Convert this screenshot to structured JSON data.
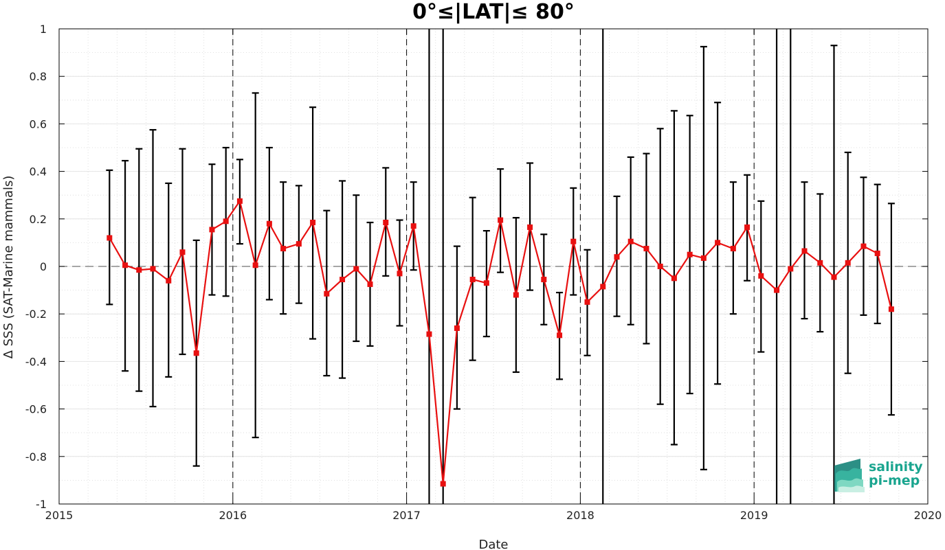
{
  "chart_data": {
    "type": "line",
    "title": "0°≤|LAT|≤ 80°",
    "xlabel": "Date",
    "ylabel": "Δ SSS (SAT-Marine mammals)",
    "xlim": [
      2015,
      2020
    ],
    "ylim": [
      -1,
      1
    ],
    "x_ticks": [
      "2015",
      "2016",
      "2017",
      "2018",
      "2019",
      "2020"
    ],
    "y_ticks": [
      "1",
      "0.8",
      "0.6",
      "0.4",
      "0.2",
      "0",
      "-0.2",
      "-0.4",
      "-0.6",
      "-0.8",
      "-1"
    ],
    "grid": true,
    "year_dividers": [
      2016,
      2017,
      2018,
      2019
    ],
    "zero_line": 0,
    "series": [
      {
        "color": "#e81010",
        "x": [
          2015.29,
          2015.38,
          2015.46,
          2015.54,
          2015.63,
          2015.71,
          2015.79,
          2015.88,
          2015.96,
          2016.04,
          2016.13,
          2016.21,
          2016.29,
          2016.38,
          2016.46,
          2016.54,
          2016.63,
          2016.71,
          2016.79,
          2016.88,
          2016.96,
          2017.04,
          2017.13,
          2017.21,
          2017.29,
          2017.38,
          2017.46,
          2017.54,
          2017.63,
          2017.71,
          2017.79,
          2017.88,
          2017.96,
          2018.04,
          2018.13,
          2018.21,
          2018.29,
          2018.38,
          2018.46,
          2018.54,
          2018.63,
          2018.71,
          2018.79,
          2018.88,
          2018.96,
          2019.04,
          2019.13,
          2019.21,
          2019.29,
          2019.38,
          2019.46,
          2019.54,
          2019.63,
          2019.71,
          2019.79
        ],
        "y": [
          0.12,
          0.005,
          -0.015,
          -0.01,
          -0.06,
          0.06,
          -0.365,
          0.155,
          0.19,
          0.275,
          0.005,
          0.18,
          0.075,
          0.095,
          0.185,
          -0.115,
          -0.055,
          -0.01,
          -0.075,
          0.185,
          -0.03,
          0.17,
          -0.285,
          -0.915,
          -0.26,
          -0.055,
          -0.07,
          0.195,
          -0.12,
          0.165,
          -0.055,
          -0.29,
          0.105,
          -0.15,
          -0.085,
          0.04,
          0.105,
          0.075,
          0.0,
          -0.05,
          0.05,
          0.035,
          0.1,
          0.075,
          0.165,
          -0.04,
          -0.1,
          -0.01,
          0.065,
          0.015,
          -0.045,
          0.015,
          0.085,
          0.055,
          -0.18
        ],
        "error_low": [
          -0.16,
          -0.44,
          -0.525,
          -0.59,
          -0.465,
          -0.37,
          -0.84,
          -0.12,
          -0.125,
          0.095,
          -0.72,
          -0.14,
          -0.2,
          -0.155,
          -0.305,
          -0.46,
          -0.47,
          -0.315,
          -0.335,
          -0.04,
          -0.25,
          -0.015,
          -1.0,
          -1.0,
          -0.6,
          -0.395,
          -0.295,
          -0.025,
          -0.445,
          -0.1,
          -0.245,
          -0.475,
          -0.12,
          -0.375,
          -1.0,
          -0.21,
          -0.245,
          -0.325,
          -0.58,
          -0.75,
          -0.535,
          -0.855,
          -0.495,
          -0.2,
          -0.06,
          -0.36,
          -1.0,
          -1.0,
          -0.22,
          -0.275,
          -1.0,
          -0.45,
          -0.205,
          -0.24,
          -0.625
        ],
        "error_high": [
          0.405,
          0.445,
          0.495,
          0.575,
          0.35,
          0.495,
          0.11,
          0.43,
          0.5,
          0.45,
          0.73,
          0.5,
          0.355,
          0.34,
          0.67,
          0.235,
          0.36,
          0.3,
          0.185,
          0.415,
          0.195,
          0.355,
          1.0,
          1.0,
          0.085,
          0.29,
          0.15,
          0.41,
          0.205,
          0.435,
          0.135,
          -0.11,
          0.33,
          0.07,
          1.0,
          0.295,
          0.46,
          0.475,
          0.58,
          0.655,
          0.635,
          0.925,
          0.69,
          0.355,
          0.385,
          0.275,
          1.0,
          1.0,
          0.355,
          0.305,
          0.93,
          0.48,
          0.375,
          0.345,
          0.265
        ]
      }
    ]
  },
  "logo": {
    "line1": "salinity",
    "line2": "pi-mep",
    "color": "#1aa58f"
  }
}
